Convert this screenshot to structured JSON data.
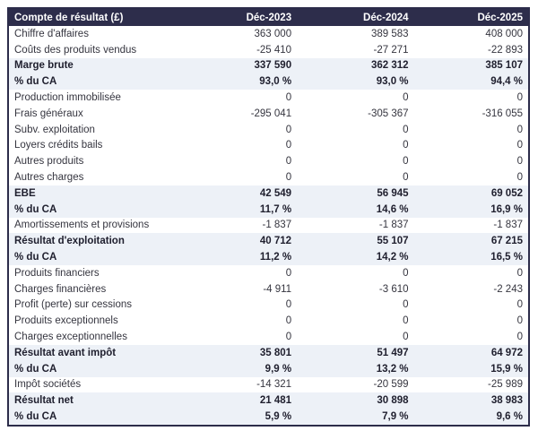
{
  "chart_data": {
    "type": "table",
    "title": "Compte de résultat (£)",
    "columns": [
      "Déc-2023",
      "Déc-2024",
      "Déc-2025"
    ],
    "rows": [
      {
        "label": "Chiffre d'affaires",
        "values": [
          "363 000",
          "389 583",
          "408 000"
        ],
        "emphasis": false
      },
      {
        "label": "Coûts des produits vendus",
        "values": [
          "-25 410",
          "-27 271",
          "-22 893"
        ],
        "emphasis": false
      },
      {
        "label": "Marge brute",
        "values": [
          "337 590",
          "362 312",
          "385 107"
        ],
        "emphasis": true
      },
      {
        "label": "% du CA",
        "values": [
          "93,0 %",
          "93,0 %",
          "94,4 %"
        ],
        "emphasis": true
      },
      {
        "label": "Production immobilisée",
        "values": [
          "0",
          "0",
          "0"
        ],
        "emphasis": false
      },
      {
        "label": "Frais généraux",
        "values": [
          "-295 041",
          "-305 367",
          "-316 055"
        ],
        "emphasis": false
      },
      {
        "label": "Subv. exploitation",
        "values": [
          "0",
          "0",
          "0"
        ],
        "emphasis": false
      },
      {
        "label": "Loyers crédits bails",
        "values": [
          "0",
          "0",
          "0"
        ],
        "emphasis": false
      },
      {
        "label": "Autres produits",
        "values": [
          "0",
          "0",
          "0"
        ],
        "emphasis": false
      },
      {
        "label": "Autres charges",
        "values": [
          "0",
          "0",
          "0"
        ],
        "emphasis": false
      },
      {
        "label": "EBE",
        "values": [
          "42 549",
          "56 945",
          "69 052"
        ],
        "emphasis": true
      },
      {
        "label": "% du CA",
        "values": [
          "11,7 %",
          "14,6 %",
          "16,9 %"
        ],
        "emphasis": true
      },
      {
        "label": "Amortissements et provisions",
        "values": [
          "-1 837",
          "-1 837",
          "-1 837"
        ],
        "emphasis": false
      },
      {
        "label": "Résultat d'exploitation",
        "values": [
          "40 712",
          "55 107",
          "67 215"
        ],
        "emphasis": true
      },
      {
        "label": "% du CA",
        "values": [
          "11,2 %",
          "14,2 %",
          "16,5 %"
        ],
        "emphasis": true
      },
      {
        "label": "Produits financiers",
        "values": [
          "0",
          "0",
          "0"
        ],
        "emphasis": false
      },
      {
        "label": "Charges financières",
        "values": [
          "-4 911",
          "-3 610",
          "-2 243"
        ],
        "emphasis": false
      },
      {
        "label": "Profit (perte) sur cessions",
        "values": [
          "0",
          "0",
          "0"
        ],
        "emphasis": false
      },
      {
        "label": "Produits exceptionnels",
        "values": [
          "0",
          "0",
          "0"
        ],
        "emphasis": false
      },
      {
        "label": "Charges exceptionnelles",
        "values": [
          "0",
          "0",
          "0"
        ],
        "emphasis": false
      },
      {
        "label": "Résultat avant impôt",
        "values": [
          "35 801",
          "51 497",
          "64 972"
        ],
        "emphasis": true
      },
      {
        "label": "% du CA",
        "values": [
          "9,9 %",
          "13,2 %",
          "15,9 %"
        ],
        "emphasis": true
      },
      {
        "label": "Impôt sociétés",
        "values": [
          "-14 321",
          "-20 599",
          "-25 989"
        ],
        "emphasis": false
      },
      {
        "label": "Résultat net",
        "values": [
          "21 481",
          "30 898",
          "38 983"
        ],
        "emphasis": true
      },
      {
        "label": "% du CA",
        "values": [
          "5,9 %",
          "7,9 %",
          "9,6 %"
        ],
        "emphasis": true
      }
    ]
  },
  "colors": {
    "header_bg": "#2d2d4b",
    "header_text": "#ffffff",
    "highlight_row_bg": "#edf1f7",
    "body_text": "#35353f",
    "emphasis_text": "#20202f",
    "outer_border": "#2c2c4a",
    "page_bg": "#ffffff"
  }
}
